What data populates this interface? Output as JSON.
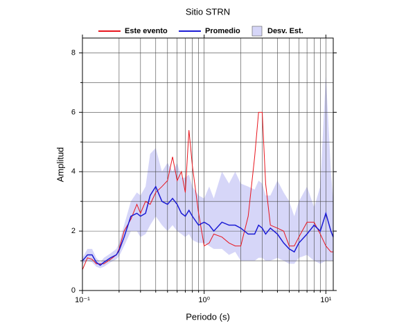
{
  "chart_data": {
    "type": "line",
    "title": "Sitio STRN",
    "xlabel": "Periodo (s)",
    "ylabel": "Amplitud",
    "xscale": "log",
    "xlim": [
      0.1,
      11.5
    ],
    "ylim": [
      0,
      8.5
    ],
    "xticks": [
      {
        "value": 0.1,
        "label": "10⁻¹"
      },
      {
        "value": 1,
        "label": "10⁰"
      },
      {
        "value": 10,
        "label": "10¹"
      }
    ],
    "yticks": [
      0,
      2,
      4,
      6,
      8
    ],
    "yminorticks": [
      1,
      3,
      5,
      7
    ],
    "grid": true,
    "x": [
      0.1,
      0.11,
      0.12,
      0.13,
      0.14,
      0.15,
      0.17,
      0.19,
      0.2,
      0.22,
      0.25,
      0.28,
      0.3,
      0.33,
      0.36,
      0.4,
      0.45,
      0.5,
      0.55,
      0.6,
      0.65,
      0.7,
      0.75,
      0.8,
      0.9,
      1.0,
      1.1,
      1.2,
      1.4,
      1.6,
      1.8,
      2.0,
      2.3,
      2.6,
      2.8,
      3.0,
      3.2,
      3.5,
      4,
      4.5,
      5,
      5.5,
      6,
      7,
      8,
      9,
      10,
      11,
      11.5
    ],
    "series": [
      {
        "name": "Este evento",
        "color": "#e8141c",
        "values": [
          0.7,
          1.1,
          1.05,
          0.9,
          0.9,
          0.9,
          1.05,
          1.2,
          1.4,
          2.0,
          2.4,
          2.9,
          2.6,
          3.0,
          2.9,
          3.3,
          3.5,
          3.7,
          4.5,
          3.7,
          4.0,
          3.3,
          5.4,
          4.2,
          2.6,
          1.5,
          1.6,
          1.9,
          1.8,
          1.6,
          1.5,
          1.5,
          2.5,
          4.5,
          6.0,
          6.0,
          3.6,
          2.2,
          2.1,
          2.0,
          1.5,
          1.5,
          1.8,
          2.3,
          2.3,
          1.9,
          1.5,
          1.3,
          1.3
        ]
      },
      {
        "name": "Promedio",
        "color": "#1a1ad4",
        "values": [
          1.0,
          1.2,
          1.2,
          0.95,
          0.85,
          0.95,
          1.1,
          1.2,
          1.35,
          1.8,
          2.5,
          2.6,
          2.5,
          2.6,
          3.2,
          3.5,
          3.0,
          2.9,
          3.1,
          2.9,
          2.6,
          2.5,
          2.7,
          2.5,
          2.2,
          2.3,
          2.2,
          2.0,
          2.3,
          2.2,
          2.2,
          2.1,
          1.9,
          1.9,
          2.2,
          2.1,
          1.9,
          2.1,
          1.9,
          1.6,
          1.4,
          1.3,
          1.6,
          1.9,
          2.2,
          2.0,
          2.6,
          2.0,
          1.8
        ]
      },
      {
        "name": "Desv. Est.",
        "color": "#d6d6f8",
        "lower": [
          0.9,
          1.0,
          0.95,
          0.8,
          0.75,
          0.8,
          0.95,
          1.05,
          1.15,
          1.5,
          2.0,
          2.0,
          1.8,
          1.9,
          2.2,
          2.5,
          2.2,
          2.0,
          2.2,
          2.0,
          1.9,
          1.8,
          1.9,
          1.7,
          1.6,
          1.6,
          1.5,
          1.4,
          1.4,
          1.2,
          1.3,
          1.0,
          1.0,
          1.0,
          1.1,
          1.1,
          1.0,
          1.0,
          1.1,
          1.0,
          0.9,
          0.9,
          1.1,
          1.2,
          1.0,
          0.9,
          1.0,
          1.0,
          1.0
        ],
        "upper": [
          1.1,
          1.4,
          1.4,
          1.1,
          0.95,
          1.1,
          1.25,
          1.4,
          1.6,
          2.2,
          3.0,
          3.3,
          3.2,
          3.5,
          4.6,
          4.8,
          4.0,
          4.3,
          4.0,
          4.3,
          3.8,
          3.8,
          3.9,
          3.5,
          3.2,
          3.1,
          3.5,
          3.1,
          4.0,
          3.6,
          4.0,
          3.6,
          3.5,
          3.4,
          3.7,
          3.6,
          3.2,
          3.2,
          3.7,
          3.3,
          3.0,
          2.5,
          3.0,
          3.5,
          2.8,
          3.5,
          7.3,
          4.0,
          3.0
        ]
      }
    ]
  }
}
